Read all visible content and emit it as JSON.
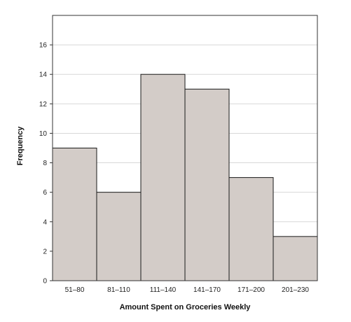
{
  "chart_data": {
    "type": "bar",
    "histogram": true,
    "title": "",
    "xlabel": "Amount Spent on Groceries Weekly",
    "ylabel": "Frequency",
    "categories": [
      "51–80",
      "81–110",
      "111–140",
      "141–170",
      "171–200",
      "201–230"
    ],
    "values": [
      9,
      6,
      14,
      13,
      7,
      3
    ],
    "ylim": [
      0,
      18
    ],
    "yticks": [
      0,
      2,
      4,
      6,
      8,
      10,
      12,
      14,
      16
    ],
    "grid": true,
    "legend": "none",
    "colors": {
      "bar_fill": "#d3ccc8",
      "bar_stroke": "#1a1a1a",
      "grid": "#d8d8d8",
      "frame": "#333333"
    }
  }
}
